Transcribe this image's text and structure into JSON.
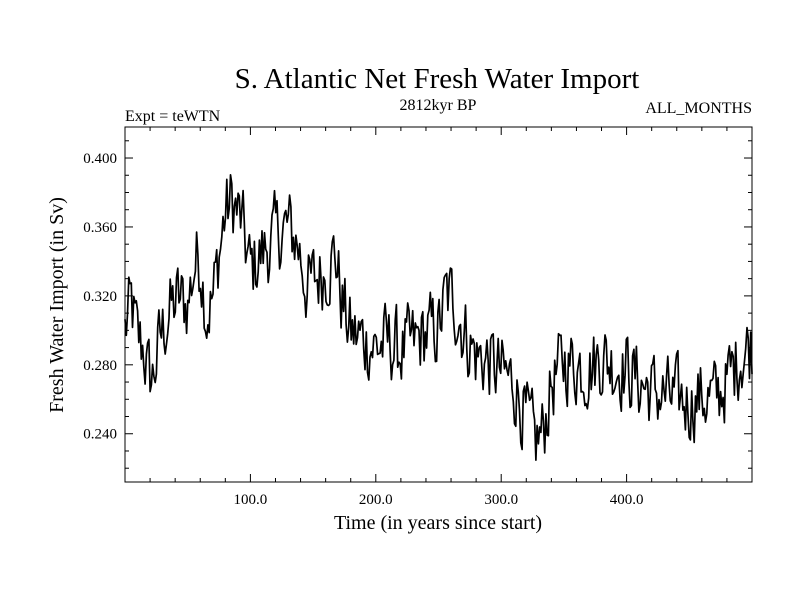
{
  "chart_data": {
    "type": "line",
    "title": "S. Atlantic Net Fresh Water Import",
    "subtitle_left": "Expt = teWTN",
    "subtitle_center": "2812kyr BP",
    "subtitle_right": "ALL_MONTHS",
    "xlabel": "Time (in years since start)",
    "ylabel": "Fresh Water Import (in Sv)",
    "xlim": [
      0,
      500
    ],
    "ylim": [
      0.212,
      0.418
    ],
    "x_ticks": [
      100,
      200,
      300,
      400
    ],
    "x_tick_labels": [
      "100.0",
      "200.0",
      "300.0",
      "400.0"
    ],
    "y_ticks": [
      0.24,
      0.28,
      0.32,
      0.36,
      0.4
    ],
    "y_tick_labels": [
      "0.240",
      "0.280",
      "0.320",
      "0.360",
      "0.400"
    ],
    "series": [
      {
        "name": "Fresh Water Import",
        "color": "#000000",
        "anchors": [
          [
            0,
            0.3
          ],
          [
            5,
            0.315
          ],
          [
            10,
            0.295
          ],
          [
            15,
            0.29
          ],
          [
            18,
            0.275
          ],
          [
            22,
            0.272
          ],
          [
            28,
            0.295
          ],
          [
            35,
            0.31
          ],
          [
            42,
            0.318
          ],
          [
            50,
            0.315
          ],
          [
            56,
            0.34
          ],
          [
            60,
            0.342
          ],
          [
            65,
            0.31
          ],
          [
            70,
            0.318
          ],
          [
            75,
            0.345
          ],
          [
            80,
            0.368
          ],
          [
            85,
            0.375
          ],
          [
            92,
            0.365
          ],
          [
            100,
            0.335
          ],
          [
            110,
            0.345
          ],
          [
            120,
            0.355
          ],
          [
            130,
            0.36
          ],
          [
            138,
            0.35
          ],
          [
            145,
            0.325
          ],
          [
            152,
            0.33
          ],
          [
            160,
            0.335
          ],
          [
            168,
            0.345
          ],
          [
            172,
            0.32
          ],
          [
            180,
            0.298
          ],
          [
            190,
            0.295
          ],
          [
            200,
            0.29
          ],
          [
            210,
            0.293
          ],
          [
            220,
            0.288
          ],
          [
            230,
            0.292
          ],
          [
            240,
            0.298
          ],
          [
            250,
            0.3
          ],
          [
            256,
            0.32
          ],
          [
            262,
            0.318
          ],
          [
            270,
            0.3
          ],
          [
            280,
            0.285
          ],
          [
            290,
            0.282
          ],
          [
            300,
            0.275
          ],
          [
            310,
            0.27
          ],
          [
            320,
            0.248
          ],
          [
            327,
            0.235
          ],
          [
            333,
            0.24
          ],
          [
            340,
            0.268
          ],
          [
            350,
            0.282
          ],
          [
            360,
            0.28
          ],
          [
            370,
            0.278
          ],
          [
            380,
            0.285
          ],
          [
            390,
            0.28
          ],
          [
            400,
            0.278
          ],
          [
            410,
            0.27
          ],
          [
            420,
            0.265
          ],
          [
            430,
            0.262
          ],
          [
            440,
            0.26
          ],
          [
            450,
            0.258
          ],
          [
            460,
            0.262
          ],
          [
            470,
            0.26
          ],
          [
            480,
            0.27
          ],
          [
            490,
            0.285
          ],
          [
            500,
            0.292
          ]
        ],
        "noise_amplitude": 0.032,
        "n_points": 500
      }
    ]
  }
}
